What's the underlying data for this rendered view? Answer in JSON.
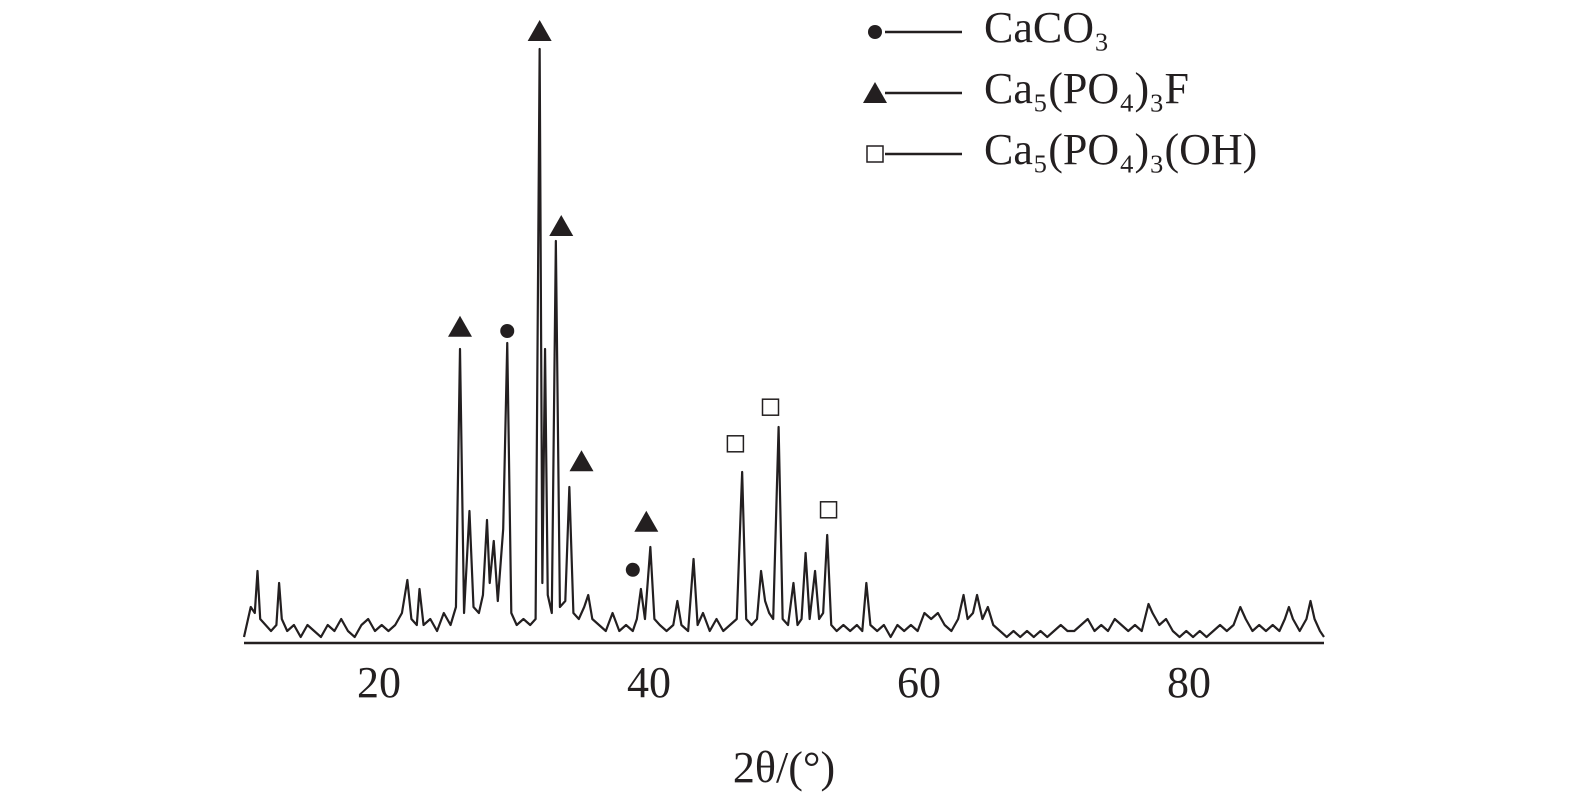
{
  "chart_data": {
    "type": "line",
    "x_label": "2θ/(°)",
    "xlim": [
      10,
      90
    ],
    "xticks": [
      20,
      40,
      60,
      80
    ],
    "ylim": [
      0,
      100
    ],
    "color": "#231f20",
    "legend_position": "upper right",
    "phases": [
      {
        "name": "CaCO₃",
        "marker": "circle"
      },
      {
        "name": "Ca₅(PO₄)₃F",
        "marker": "triangle"
      },
      {
        "name": "Ca₅(PO₄)₃(OH)",
        "marker": "square"
      }
    ],
    "peak_markers": [
      {
        "x": 26.0,
        "y": 52.7,
        "phase": 1
      },
      {
        "x": 29.5,
        "y": 52,
        "phase": 0
      },
      {
        "x": 31.9,
        "y": 102,
        "phase": 1
      },
      {
        "x": 33.5,
        "y": 69.5,
        "phase": 1
      },
      {
        "x": 35.0,
        "y": 30.3,
        "phase": 1
      },
      {
        "x": 38.8,
        "y": 12.2,
        "phase": 0
      },
      {
        "x": 39.8,
        "y": 20.2,
        "phase": 1
      },
      {
        "x": 46.4,
        "y": 33.2,
        "phase": 2
      },
      {
        "x": 49.0,
        "y": 39.3,
        "phase": 2
      },
      {
        "x": 53.3,
        "y": 22.2,
        "phase": 2
      }
    ],
    "x": [
      10,
      10.3,
      10.5,
      10.8,
      11.0,
      11.2,
      11.6,
      12.0,
      12.4,
      12.6,
      12.8,
      13.2,
      13.7,
      14.2,
      14.7,
      15.2,
      15.7,
      16.2,
      16.7,
      17.2,
      17.7,
      18.2,
      18.7,
      19.2,
      19.7,
      20.2,
      20.7,
      21.2,
      21.7,
      22.1,
      22.4,
      22.8,
      23.0,
      23.3,
      23.8,
      24.3,
      24.8,
      25.3,
      25.7,
      26.0,
      26.3,
      26.7,
      27.0,
      27.4,
      27.7,
      28.0,
      28.2,
      28.5,
      28.8,
      29.2,
      29.5,
      29.8,
      30.2,
      30.7,
      31.2,
      31.6,
      31.9,
      32.1,
      32.3,
      32.5,
      32.8,
      33.1,
      33.4,
      33.8,
      34.1,
      34.4,
      34.8,
      35.2,
      35.5,
      35.8,
      36.3,
      36.8,
      37.3,
      37.8,
      38.3,
      38.8,
      39.1,
      39.4,
      39.7,
      40.1,
      40.4,
      40.8,
      41.3,
      41.8,
      42.1,
      42.4,
      42.9,
      43.3,
      43.6,
      44.0,
      44.5,
      45.0,
      45.5,
      46.0,
      46.5,
      46.9,
      47.2,
      47.6,
      48.0,
      48.3,
      48.6,
      48.9,
      49.2,
      49.6,
      49.9,
      50.3,
      50.7,
      51.0,
      51.3,
      51.6,
      51.9,
      52.3,
      52.6,
      52.9,
      53.2,
      53.5,
      53.9,
      54.4,
      54.9,
      55.4,
      55.8,
      56.1,
      56.4,
      56.9,
      57.4,
      57.9,
      58.4,
      58.9,
      59.4,
      59.9,
      60.4,
      60.9,
      61.4,
      61.9,
      62.4,
      62.9,
      63.3,
      63.6,
      64.0,
      64.3,
      64.7,
      65.1,
      65.5,
      66.0,
      66.5,
      67.0,
      67.5,
      68.0,
      68.5,
      69.0,
      69.5,
      70.0,
      70.5,
      71.0,
      71.5,
      72.0,
      72.5,
      73.0,
      73.5,
      74.0,
      74.5,
      75.0,
      75.5,
      76.0,
      76.5,
      77.0,
      77.3,
      77.8,
      78.3,
      78.8,
      79.3,
      79.8,
      80.3,
      80.8,
      81.3,
      81.8,
      82.3,
      82.8,
      83.3,
      83.8,
      84.2,
      84.7,
      85.2,
      85.7,
      86.2,
      86.7,
      87.1,
      87.4,
      87.7,
      88.2,
      88.7,
      89.0,
      89.3,
      89.7,
      90.0
    ],
    "values": [
      1,
      4,
      6,
      5,
      12,
      4,
      3,
      2,
      3,
      10,
      4,
      2,
      3,
      1,
      3,
      2,
      1,
      3,
      2,
      4,
      2,
      1,
      3,
      4,
      2,
      3,
      2,
      3,
      5,
      10.5,
      4,
      3,
      9,
      3,
      4,
      2,
      5,
      3,
      6,
      49,
      5,
      22,
      6,
      5,
      8,
      20.5,
      10,
      17,
      7,
      19,
      50,
      5,
      3,
      4,
      3,
      4,
      99,
      10,
      49,
      8,
      5,
      67,
      6,
      7,
      26,
      5,
      4,
      6,
      8,
      4,
      3,
      2,
      5,
      2,
      3,
      2,
      4,
      9,
      4,
      16,
      4,
      3,
      2,
      3,
      7,
      3,
      2,
      14,
      3,
      5,
      2,
      4,
      2,
      3,
      4,
      28.5,
      4,
      3,
      4,
      12,
      7,
      5,
      4,
      36,
      4,
      3,
      10,
      3,
      4,
      15,
      4,
      12,
      4,
      5,
      18,
      3,
      2,
      3,
      2,
      3,
      2,
      10,
      3,
      2,
      3,
      1,
      3,
      2,
      3,
      2,
      5,
      4,
      5,
      3,
      2,
      4,
      8,
      4,
      5,
      8,
      4,
      6,
      3,
      2,
      1,
      2,
      1,
      2,
      1,
      2,
      1,
      2,
      3,
      2,
      2,
      3,
      4,
      2,
      3,
      2,
      4,
      3,
      2,
      3,
      2,
      6.5,
      5,
      3,
      4,
      2,
      1,
      2,
      1,
      2,
      1,
      2,
      3,
      2,
      3,
      6,
      4,
      2,
      3,
      2,
      3,
      2,
      4,
      6,
      4,
      2,
      4,
      7,
      4,
      2,
      1
    ]
  }
}
